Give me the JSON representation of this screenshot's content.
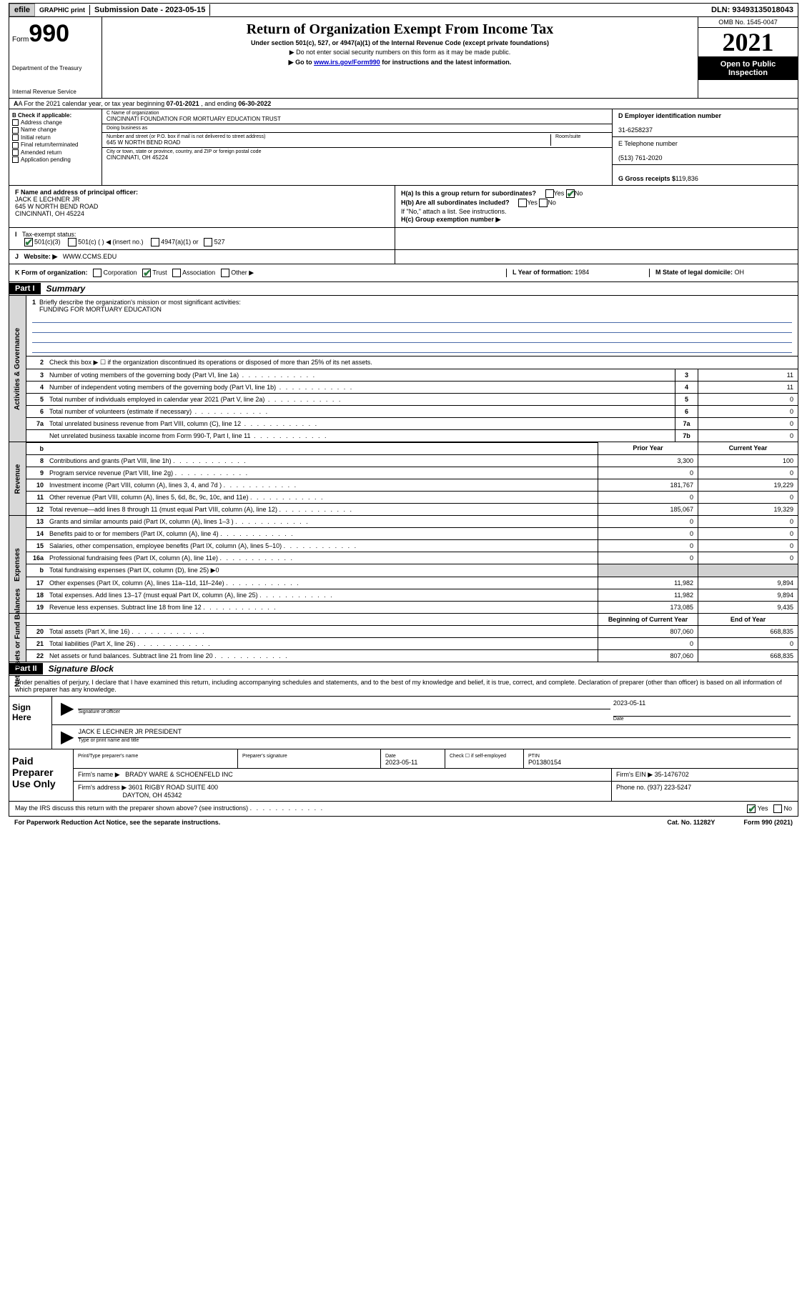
{
  "topbar": {
    "efile": "efile",
    "graphic": "GRAPHIC",
    "print": "print",
    "subdate_label": "Submission Date - 2023-05-15",
    "dln": "DLN: 93493135018043"
  },
  "header": {
    "form_prefix": "Form",
    "form_no": "990",
    "dept": "Department of the Treasury",
    "irs": "Internal Revenue Service",
    "title": "Return of Organization Exempt From Income Tax",
    "sub1": "Under section 501(c), 527, or 4947(a)(1) of the Internal Revenue Code (except private foundations)",
    "sub2": "▶ Do not enter social security numbers on this form as it may be made public.",
    "sub3_pre": "▶ Go to ",
    "sub3_link": "www.irs.gov/Form990",
    "sub3_post": " for instructions and the latest information.",
    "omb": "OMB No. 1545-0047",
    "year": "2021",
    "inspect1": "Open to Public",
    "inspect2": "Inspection"
  },
  "rowA": {
    "pre": "A For the 2021 calendar year, or tax year beginning ",
    "begin": "07-01-2021",
    "mid": " , and ending ",
    "end": "06-30-2022"
  },
  "colB": {
    "title": "B Check if applicable:",
    "items": [
      "Address change",
      "Name change",
      "Initial return",
      "Final return/terminated",
      "Amended return",
      "Application pending"
    ]
  },
  "colC": {
    "name_lab": "C Name of organization",
    "name": "CINCINNATI FOUNDATION FOR MORTUARY EDUCATION TRUST",
    "dba_lab": "Doing business as",
    "street_lab": "Number and street (or P.O. box if mail is not delivered to street address)",
    "room_lab": "Room/suite",
    "street": "645 W NORTH BEND ROAD",
    "city_lab": "City or town, state or province, country, and ZIP or foreign postal code",
    "city": "CINCINNATI, OH  45224"
  },
  "colD": {
    "ein_lab": "D Employer identification number",
    "ein": "31-6258237",
    "tel_lab": "E Telephone number",
    "tel": "(513) 761-2020",
    "gross_lab": "G Gross receipts $",
    "gross": "119,836"
  },
  "colF": {
    "lab": "F Name and address of principal officer:",
    "name": "JACK E LECHNER JR",
    "street": "645 W NORTH BEND ROAD",
    "city": "CINCINNATI, OH  45224"
  },
  "colH": {
    "a": "H(a)  Is this a group return for subordinates?",
    "b": "H(b)  Are all subordinates included?",
    "note": "If \"No,\" attach a list. See instructions.",
    "c": "H(c)  Group exemption number ▶",
    "yes": "Yes",
    "no": "No"
  },
  "rowI": {
    "lab": "Tax-exempt status:",
    "opts": [
      "501(c)(3)",
      "501(c) (  ) ◀ (insert no.)",
      "4947(a)(1) or",
      "527"
    ]
  },
  "rowJ": {
    "lab": "Website: ▶",
    "val": "WWW.CCMS.EDU"
  },
  "rowK": {
    "lab": "K Form of organization:",
    "opts": [
      "Corporation",
      "Trust",
      "Association",
      "Other ▶"
    ],
    "L_lab": "L Year of formation:",
    "L_val": "1984",
    "M_lab": "M State of legal domicile:",
    "M_val": "OH"
  },
  "part1": {
    "hdr": "Part I",
    "title": "Summary",
    "tabs": [
      "Activities & Governance",
      "Revenue",
      "Expenses",
      "Net Assets or Fund Balances"
    ],
    "mission_lab": "Briefly describe the organization's mission or most significant activities:",
    "mission": "FUNDING FOR MORTUARY EDUCATION",
    "line2": "Check this box ▶ ☐  if the organization discontinued its operations or disposed of more than 25% of its net assets.",
    "rows_gov": [
      {
        "n": "3",
        "t": "Number of voting members of the governing body (Part VI, line 1a)",
        "b": "3",
        "v": "11"
      },
      {
        "n": "4",
        "t": "Number of independent voting members of the governing body (Part VI, line 1b)",
        "b": "4",
        "v": "11"
      },
      {
        "n": "5",
        "t": "Total number of individuals employed in calendar year 2021 (Part V, line 2a)",
        "b": "5",
        "v": "0"
      },
      {
        "n": "6",
        "t": "Total number of volunteers (estimate if necessary)",
        "b": "6",
        "v": "0"
      },
      {
        "n": "7a",
        "t": "Total unrelated business revenue from Part VIII, column (C), line 12",
        "b": "7a",
        "v": "0"
      },
      {
        "n": "",
        "t": "Net unrelated business taxable income from Form 990-T, Part I, line 11",
        "b": "7b",
        "v": "0"
      }
    ],
    "col_prior": "Prior Year",
    "col_curr": "Current Year",
    "col_beg": "Beginning of Current Year",
    "col_end": "End of Year",
    "rows_rev": [
      {
        "n": "8",
        "t": "Contributions and grants (Part VIII, line 1h)",
        "p": "3,300",
        "c": "100"
      },
      {
        "n": "9",
        "t": "Program service revenue (Part VIII, line 2g)",
        "p": "0",
        "c": "0"
      },
      {
        "n": "10",
        "t": "Investment income (Part VIII, column (A), lines 3, 4, and 7d )",
        "p": "181,767",
        "c": "19,229"
      },
      {
        "n": "11",
        "t": "Other revenue (Part VIII, column (A), lines 5, 6d, 8c, 9c, 10c, and 11e)",
        "p": "0",
        "c": "0"
      },
      {
        "n": "12",
        "t": "Total revenue—add lines 8 through 11 (must equal Part VIII, column (A), line 12)",
        "p": "185,067",
        "c": "19,329"
      }
    ],
    "rows_exp": [
      {
        "n": "13",
        "t": "Grants and similar amounts paid (Part IX, column (A), lines 1–3 )",
        "p": "0",
        "c": "0"
      },
      {
        "n": "14",
        "t": "Benefits paid to or for members (Part IX, column (A), line 4)",
        "p": "0",
        "c": "0"
      },
      {
        "n": "15",
        "t": "Salaries, other compensation, employee benefits (Part IX, column (A), lines 5–10)",
        "p": "0",
        "c": "0"
      },
      {
        "n": "16a",
        "t": "Professional fundraising fees (Part IX, column (A), line 11e)",
        "p": "0",
        "c": "0"
      },
      {
        "n": "b",
        "t": "Total fundraising expenses (Part IX, column (D), line 25) ▶0",
        "p": "",
        "c": "",
        "shade": true
      },
      {
        "n": "17",
        "t": "Other expenses (Part IX, column (A), lines 11a–11d, 11f–24e)",
        "p": "11,982",
        "c": "9,894"
      },
      {
        "n": "18",
        "t": "Total expenses. Add lines 13–17 (must equal Part IX, column (A), line 25)",
        "p": "11,982",
        "c": "9,894"
      },
      {
        "n": "19",
        "t": "Revenue less expenses. Subtract line 18 from line 12",
        "p": "173,085",
        "c": "9,435"
      }
    ],
    "rows_net": [
      {
        "n": "20",
        "t": "Total assets (Part X, line 16)",
        "p": "807,060",
        "c": "668,835"
      },
      {
        "n": "21",
        "t": "Total liabilities (Part X, line 26)",
        "p": "0",
        "c": "0"
      },
      {
        "n": "22",
        "t": "Net assets or fund balances. Subtract line 21 from line 20",
        "p": "807,060",
        "c": "668,835"
      }
    ]
  },
  "part2": {
    "hdr": "Part II",
    "title": "Signature Block",
    "decl": "Under penalties of perjury, I declare that I have examined this return, including accompanying schedules and statements, and to the best of my knowledge and belief, it is true, correct, and complete. Declaration of preparer (other than officer) is based on all information of which preparer has any knowledge."
  },
  "sign": {
    "here": "Sign Here",
    "sig_lab": "Signature of officer",
    "date_lab": "Date",
    "date": "2023-05-11",
    "name": "JACK E LECHNER JR  PRESIDENT",
    "name_lab": "Type or print name and title"
  },
  "prep": {
    "title": "Paid Preparer Use Only",
    "pt_name_lab": "Print/Type preparer's name",
    "sig_lab": "Preparer's signature",
    "date_lab": "Date",
    "date": "2023-05-11",
    "check_lab": "Check ☐ if self-employed",
    "ptin_lab": "PTIN",
    "ptin": "P01380154",
    "firm_lab": "Firm's name    ▶",
    "firm": "BRADY WARE & SCHOENFELD INC",
    "ein_lab": "Firm's EIN ▶",
    "ein": "35-1476702",
    "addr_lab": "Firm's address ▶",
    "addr1": "3601 RIGBY ROAD SUITE 400",
    "addr2": "DAYTON, OH  45342",
    "phone_lab": "Phone no.",
    "phone": "(937) 223-5247"
  },
  "footer": {
    "discuss": "May the IRS discuss this return with the preparer shown above? (see instructions)",
    "yes": "Yes",
    "no": "No",
    "pra": "For Paperwork Reduction Act Notice, see the separate instructions.",
    "cat": "Cat. No. 11282Y",
    "form": "Form 990 (2021)"
  }
}
